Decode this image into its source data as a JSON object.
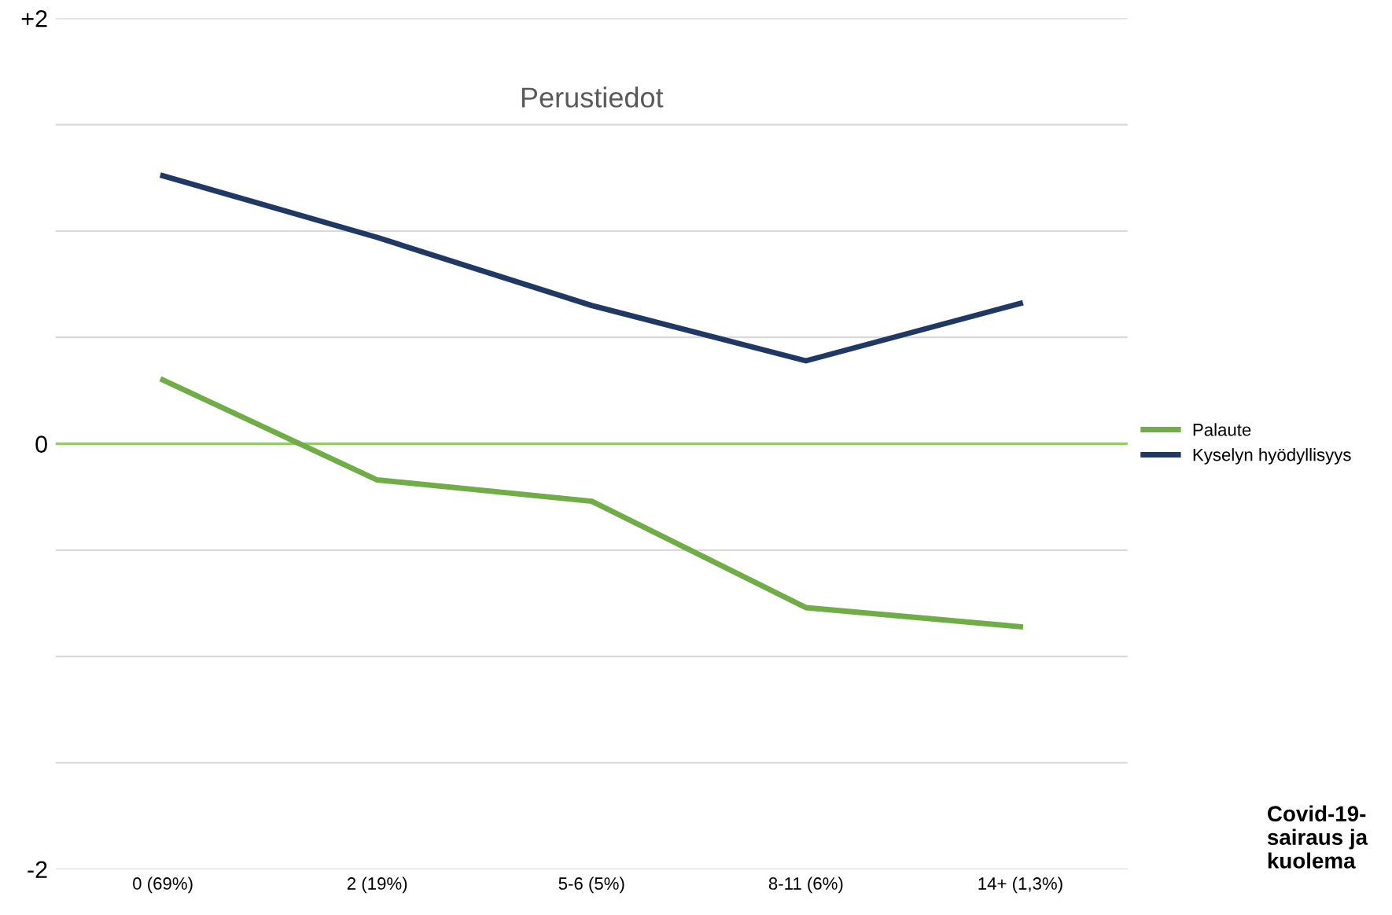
{
  "chart_data": {
    "type": "line",
    "title": "Perustiedot",
    "annotations": [
      "Covid-19-\nsairaus ja\nkuolema"
    ],
    "categories": [
      "0 (69%)",
      "2 (19%)",
      "5-6 (5%)",
      "8-11 (6%)",
      "14+ (1,3%)"
    ],
    "series": [
      {
        "name": "Palaute",
        "color": "#70ad47",
        "values": [
          0.3,
          -0.17,
          -0.27,
          -0.77,
          -0.86
        ]
      },
      {
        "name": "Kyselyn hyödyllisyys",
        "color": "#203864",
        "values": [
          1.26,
          0.97,
          0.65,
          0.39,
          0.66
        ]
      }
    ],
    "ylim": [
      -2,
      2
    ],
    "yticks": [
      {
        "value": -2,
        "label": "-2"
      },
      {
        "value": -1.5,
        "label": null
      },
      {
        "value": -1,
        "label": null
      },
      {
        "value": -0.5,
        "label": null
      },
      {
        "value": 0,
        "label": "0"
      },
      {
        "value": 0.5,
        "label": null
      },
      {
        "value": 1,
        "label": null
      },
      {
        "value": 1.5,
        "label": null
      },
      {
        "value": 2,
        "label": "+2"
      }
    ],
    "ref_lines": [
      {
        "axis": "y",
        "value": 0,
        "color": "#92d050"
      }
    ],
    "grid": "y",
    "legend": "right",
    "marker": "none",
    "line_style": "solid"
  }
}
